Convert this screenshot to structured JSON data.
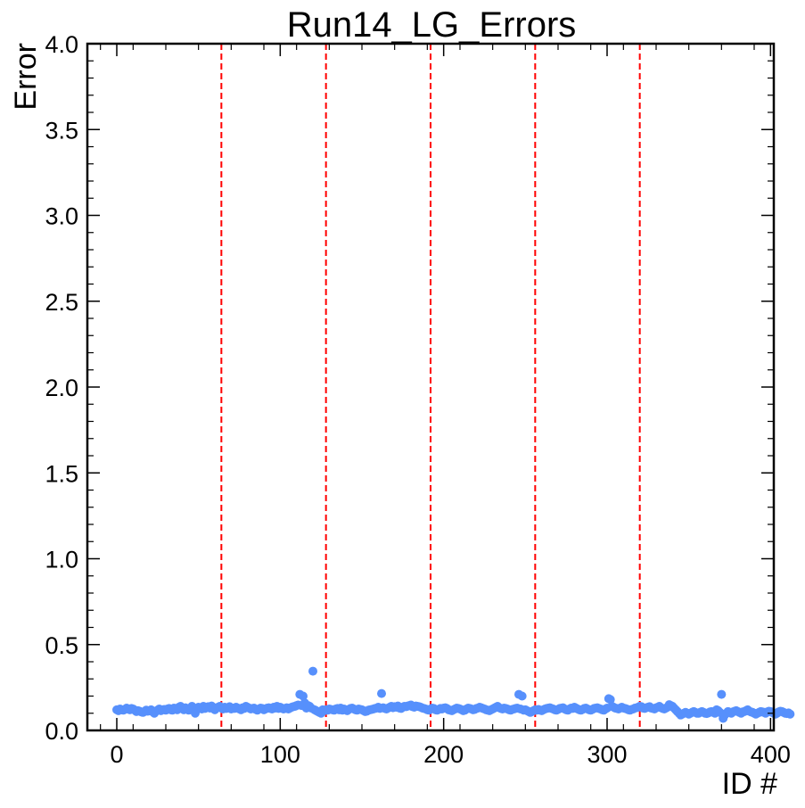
{
  "chart_data": {
    "type": "scatter",
    "title": "Run14_LG_Errors",
    "xlabel": "ID #",
    "ylabel": "Error",
    "xlim": [
      -18,
      402
    ],
    "ylim": [
      0.0,
      4.0
    ],
    "xticks": [
      0,
      100,
      200,
      300,
      400
    ],
    "xtick_labels": [
      "0",
      "100",
      "200",
      "300",
      "400"
    ],
    "yticks": [
      0.0,
      0.5,
      1.0,
      1.5,
      2.0,
      2.5,
      3.0,
      3.5,
      4.0
    ],
    "ytick_labels": [
      "0.0",
      "0.5",
      "1.0",
      "1.5",
      "2.0",
      "2.5",
      "3.0",
      "3.5",
      "4.0"
    ],
    "grid": false,
    "point_color": "#5790fc",
    "vline_color": "#ff0000",
    "vlines": [
      64,
      128,
      192,
      256,
      320
    ],
    "series": [
      {
        "values": [
          0.12,
          0.115,
          0.125,
          0.12,
          0.118,
          0.122,
          0.13,
          0.125,
          0.12,
          0.128,
          0.125,
          0.118,
          0.11,
          0.115,
          0.112,
          0.108,
          0.105,
          0.11,
          0.118,
          0.112,
          0.115,
          0.12,
          0.108,
          0.1,
          0.112,
          0.118,
          0.125,
          0.115,
          0.12,
          0.122,
          0.118,
          0.125,
          0.128,
          0.12,
          0.118,
          0.13,
          0.125,
          0.12,
          0.135,
          0.14,
          0.128,
          0.12,
          0.132,
          0.125,
          0.118,
          0.13,
          0.14,
          0.125,
          0.1,
          0.128,
          0.135,
          0.13,
          0.125,
          0.14,
          0.128,
          0.135,
          0.138,
          0.13,
          0.142,
          0.128,
          0.12,
          0.132,
          0.135,
          0.14,
          0.13,
          0.125,
          0.135,
          0.128,
          0.132,
          0.138,
          0.125,
          0.13,
          0.128,
          0.135,
          0.13,
          0.125,
          0.12,
          0.132,
          0.128,
          0.14,
          0.135,
          0.13,
          0.125,
          0.128,
          0.13,
          0.122,
          0.118,
          0.125,
          0.13,
          0.128,
          0.12,
          0.125,
          0.13,
          0.132,
          0.128,
          0.125,
          0.135,
          0.13,
          0.14,
          0.128,
          0.135,
          0.13,
          0.125,
          0.128,
          0.132,
          0.125,
          0.13,
          0.135,
          0.138,
          0.14,
          0.145,
          0.148,
          0.21,
          0.145,
          0.2,
          0.16,
          0.13,
          0.145,
          0.14,
          0.13,
          0.345,
          0.12,
          0.115,
          0.11,
          0.105,
          0.1,
          0.12,
          0.115,
          0.12,
          0.118,
          0.125,
          0.122,
          0.12,
          0.118,
          0.125,
          0.128,
          0.12,
          0.13,
          0.118,
          0.125,
          0.12,
          0.115,
          0.122,
          0.128,
          0.13,
          0.125,
          0.12,
          0.118,
          0.125,
          0.122,
          0.12,
          0.115,
          0.11,
          0.112,
          0.118,
          0.12,
          0.122,
          0.125,
          0.128,
          0.13,
          0.135,
          0.128,
          0.215,
          0.132,
          0.128,
          0.125,
          0.13,
          0.135,
          0.14,
          0.132,
          0.138,
          0.135,
          0.142,
          0.13,
          0.128,
          0.135,
          0.14,
          0.138,
          0.142,
          0.145,
          0.148,
          0.138,
          0.135,
          0.142,
          0.14,
          0.138,
          0.135,
          0.13,
          0.128,
          0.125,
          0.12,
          0.118,
          0.125,
          0.13,
          0.128,
          0.12,
          0.118,
          0.122,
          0.128,
          0.125,
          0.13,
          0.132,
          0.128,
          0.12,
          0.118,
          0.115,
          0.12,
          0.125,
          0.13,
          0.128,
          0.125,
          0.12,
          0.115,
          0.118,
          0.125,
          0.13,
          0.128,
          0.125,
          0.12,
          0.122,
          0.128,
          0.13,
          0.135,
          0.132,
          0.128,
          0.125,
          0.12,
          0.118,
          0.115,
          0.12,
          0.125,
          0.13,
          0.135,
          0.14,
          0.132,
          0.128,
          0.125,
          0.13,
          0.128,
          0.125,
          0.12,
          0.118,
          0.122,
          0.125,
          0.128,
          0.13,
          0.21,
          0.125,
          0.2,
          0.118,
          0.12,
          0.115,
          0.11,
          0.105,
          0.11,
          0.115,
          0.12,
          0.118,
          0.122,
          0.118,
          0.115,
          0.12,
          0.125,
          0.128,
          0.13,
          0.132,
          0.128,
          0.125,
          0.12,
          0.118,
          0.122,
          0.128,
          0.13,
          0.132,
          0.125,
          0.12,
          0.118,
          0.125,
          0.13,
          0.128,
          0.135,
          0.13,
          0.125,
          0.12,
          0.118,
          0.122,
          0.128,
          0.13,
          0.125,
          0.12,
          0.118,
          0.122,
          0.128,
          0.13,
          0.132,
          0.128,
          0.125,
          0.12,
          0.118,
          0.125,
          0.13,
          0.185,
          0.18,
          0.14,
          0.135,
          0.13,
          0.128,
          0.125,
          0.13,
          0.135,
          0.13,
          0.128,
          0.125,
          0.12,
          0.118,
          0.122,
          0.125,
          0.13,
          0.132,
          0.135,
          0.14,
          0.138,
          0.13,
          0.128,
          0.132,
          0.135,
          0.138,
          0.13,
          0.128,
          0.125,
          0.132,
          0.135,
          0.14,
          0.132,
          0.128,
          0.125,
          0.13,
          0.135,
          0.15,
          0.145,
          0.14,
          0.13,
          0.12,
          0.11,
          0.1,
          0.09,
          0.095,
          0.1,
          0.105,
          0.1,
          0.095,
          0.1,
          0.105,
          0.11,
          0.105,
          0.1,
          0.1,
          0.105,
          0.11,
          0.105,
          0.1,
          0.098,
          0.102,
          0.108,
          0.11,
          0.105,
          0.1,
          0.12,
          0.115,
          0.105,
          0.21,
          0.07,
          0.09,
          0.1,
          0.11,
          0.105,
          0.1,
          0.108,
          0.112,
          0.115,
          0.11,
          0.105,
          0.1,
          0.108,
          0.11,
          0.115,
          0.12,
          0.112,
          0.108,
          0.105,
          0.1,
          0.095,
          0.1,
          0.105,
          0.11,
          0.108,
          0.105,
          0.1,
          0.108,
          0.112,
          0.11,
          0.105,
          0.1,
          0.095,
          0.1,
          0.108,
          0.112,
          0.11,
          0.105,
          0.1,
          0.098,
          0.102,
          0.095
        ]
      }
    ]
  }
}
